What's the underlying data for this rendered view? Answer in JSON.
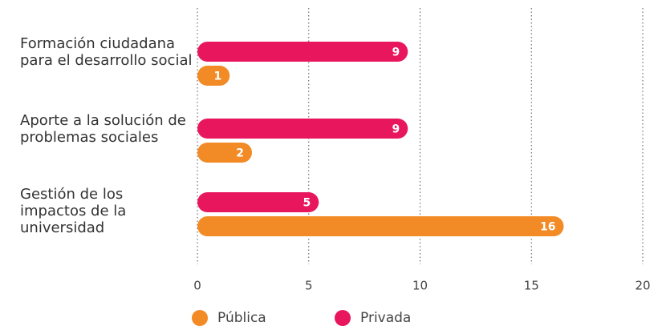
{
  "chart_data": {
    "type": "bar",
    "orientation": "horizontal",
    "categories": [
      "Formación ciudadana para el desarrollo social",
      "Aporte a la solución de problemas sociales",
      "Gestión de los impactos de la universidad"
    ],
    "series": [
      {
        "name": "Pública",
        "color": "#f28a26",
        "values": [
          1,
          2,
          16
        ]
      },
      {
        "name": "Privada",
        "color": "#e8175d",
        "values": [
          9,
          9,
          5
        ]
      }
    ],
    "xlim": [
      0,
      20
    ],
    "xticks": [
      0,
      5,
      10,
      15,
      20
    ],
    "grid": true,
    "legend": "bottom"
  }
}
